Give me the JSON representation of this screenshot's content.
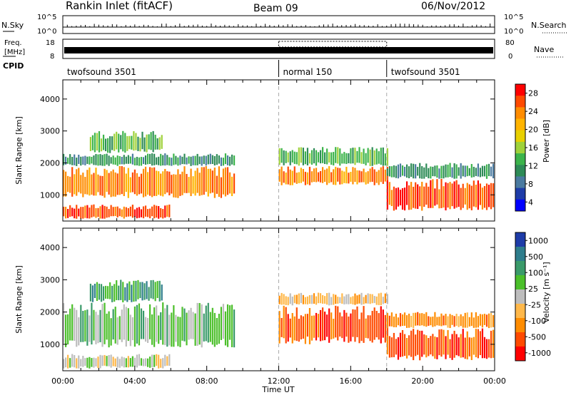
{
  "header": {
    "station": "Rankin Inlet (fitACF)",
    "beam": "Beam 09",
    "date": "06/Nov/2012"
  },
  "summary_panel": {
    "nsky_label": "N.Sky",
    "nsearch_label": "N.Search",
    "count_ticks": [
      "10^5",
      "10^0"
    ],
    "freq_label_1": "Freq.",
    "freq_label_2": "[MHz]",
    "freq_ticks": [
      "18",
      "8"
    ],
    "nave_label": "Nave",
    "nave_ticks": [
      "80",
      "0"
    ],
    "cpid_label": "CPID",
    "cpid_segments": [
      {
        "name": "twofsound 3501",
        "start_h": 0,
        "end_h": 12
      },
      {
        "name": "normal 150",
        "start_h": 12,
        "end_h": 18
      },
      {
        "name": "twofsound 3501",
        "start_h": 18,
        "end_h": 24
      }
    ]
  },
  "chart_data": [
    {
      "type": "heatmap",
      "id": "power",
      "ylabel": "Slant Range [km]",
      "colorbar_label": "Power [dB]",
      "colorbar_ticks": [
        "28",
        "24",
        "20",
        "16",
        "12",
        "8",
        "4"
      ],
      "colorbar_colors": [
        "#ff0000",
        "#ff4a00",
        "#ff8c00",
        "#ffb400",
        "#e8d000",
        "#9fd23a",
        "#3cb44b",
        "#2e8b57",
        "#4a7aa0",
        "#1e3ca8",
        "#0000ff"
      ],
      "y_ticks": [
        "4000",
        "3000",
        "2000",
        "1000"
      ],
      "ylim": [
        180,
        4600
      ],
      "xlim_h": [
        0,
        24
      ],
      "features": [
        {
          "t0": 0.0,
          "t1": 6.0,
          "r0": 250,
          "r1": 700,
          "value": "28"
        },
        {
          "t0": 0.0,
          "t1": 9.5,
          "r0": 900,
          "r1": 1900,
          "value": "24"
        },
        {
          "t0": 0.0,
          "t1": 9.5,
          "r0": 1900,
          "r1": 2300,
          "value": "12"
        },
        {
          "t0": 1.5,
          "t1": 5.5,
          "r0": 2300,
          "r1": 3000,
          "value": "16"
        },
        {
          "t0": 12.0,
          "t1": 18.0,
          "r0": 1300,
          "r1": 1900,
          "value": "24"
        },
        {
          "t0": 12.0,
          "t1": 18.0,
          "r0": 1900,
          "r1": 2500,
          "value": "16"
        },
        {
          "t0": 18.0,
          "t1": 24.0,
          "r0": 500,
          "r1": 1500,
          "value": "28"
        },
        {
          "t0": 18.0,
          "t1": 24.0,
          "r0": 1500,
          "r1": 2000,
          "value": "12"
        }
      ]
    },
    {
      "type": "heatmap",
      "id": "velocity",
      "ylabel": "Slant Range [km]",
      "xlabel": "Time UT",
      "colorbar_label": "Velocity [m s⁻¹]",
      "colorbar_ticks": [
        "1000",
        "500",
        "100",
        "25",
        "-25",
        "-100",
        "-500",
        "-1000"
      ],
      "colorbar_colors": [
        "#1e3ca8",
        "#2e7d8c",
        "#3a9a6a",
        "#4bbf2a",
        "#bdbdbd",
        "#ffb84a",
        "#ff8c00",
        "#ff4a00",
        "#ff0000"
      ],
      "y_ticks": [
        "4000",
        "3000",
        "2000",
        "1000"
      ],
      "x_ticks": [
        "00:00",
        "04:00",
        "08:00",
        "12:00",
        "16:00",
        "20:00",
        "00:00"
      ],
      "ylim": [
        180,
        4600
      ],
      "xlim_h": [
        0,
        24
      ],
      "features": [
        {
          "t0": 0.0,
          "t1": 9.5,
          "r0": 900,
          "r1": 2300,
          "value": "100"
        },
        {
          "t0": 1.5,
          "t1": 5.5,
          "r0": 2300,
          "r1": 3000,
          "value": "500"
        },
        {
          "t0": 0.0,
          "t1": 6.0,
          "r0": 250,
          "r1": 700,
          "value": "25"
        },
        {
          "t0": 12.0,
          "t1": 18.0,
          "r0": 1000,
          "r1": 2200,
          "value": "-500"
        },
        {
          "t0": 12.0,
          "t1": 18.0,
          "r0": 2200,
          "r1": 2600,
          "value": "-25"
        },
        {
          "t0": 18.0,
          "t1": 24.0,
          "r0": 500,
          "r1": 1500,
          "value": "-500"
        },
        {
          "t0": 18.0,
          "t1": 24.0,
          "r0": 1500,
          "r1": 2000,
          "value": "-100"
        }
      ]
    }
  ]
}
